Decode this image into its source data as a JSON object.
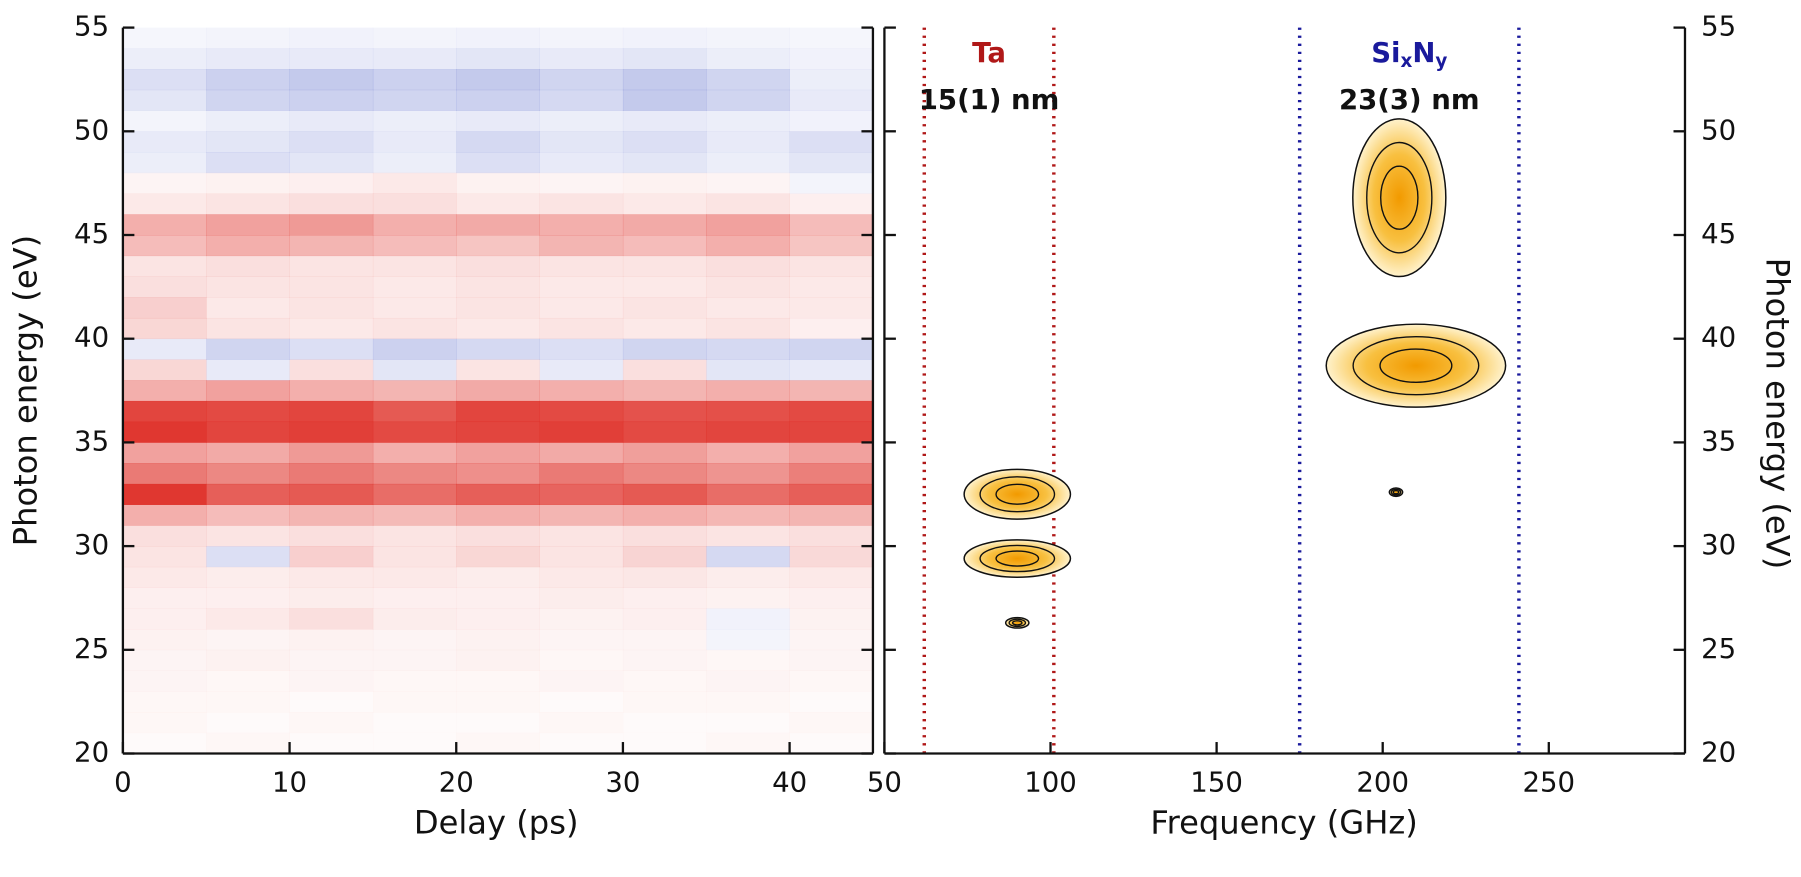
{
  "chart_data": [
    {
      "type": "heatmap",
      "xlabel": "Delay (ps)",
      "ylabel": "Photon energy (eV)",
      "xlim": [
        0,
        45
      ],
      "ylim": [
        20,
        55
      ],
      "xticks": [
        0,
        10,
        20,
        30,
        40
      ],
      "yticks": [
        20,
        25,
        30,
        35,
        40,
        45,
        50,
        55
      ],
      "x_bins": [
        0,
        5,
        10,
        15,
        20,
        25,
        30,
        35,
        40,
        45
      ],
      "y_bins": [
        20,
        21,
        22,
        23,
        24,
        25,
        26,
        27,
        28,
        29,
        30,
        31,
        32,
        33,
        34,
        35,
        36,
        37,
        38,
        39,
        40,
        41,
        42,
        43,
        44,
        45,
        46,
        47,
        48,
        49,
        50,
        51,
        52,
        53,
        54,
        55
      ],
      "zlim": [
        -0.8,
        0.8
      ],
      "colors": {
        "positive": "#de2a22",
        "negative": "#4456c4"
      },
      "values": [
        [
          0.02,
          0.03,
          0.02,
          0.02,
          0.03,
          0.02,
          0.02,
          0.03,
          0.02
        ],
        [
          0.03,
          0.02,
          0.03,
          0.02,
          0.02,
          0.03,
          0.02,
          0.02,
          0.03
        ],
        [
          0.03,
          0.03,
          0.02,
          0.03,
          0.03,
          0.02,
          0.03,
          0.03,
          0.02
        ],
        [
          0.04,
          0.03,
          0.04,
          0.03,
          0.03,
          0.04,
          0.03,
          0.04,
          0.03
        ],
        [
          0.04,
          0.05,
          0.04,
          0.04,
          0.05,
          0.03,
          0.04,
          0.03,
          0.04
        ],
        [
          0.05,
          0.04,
          0.05,
          0.04,
          0.05,
          0.04,
          0.04,
          -0.05,
          0.04
        ],
        [
          0.06,
          0.08,
          0.12,
          0.07,
          0.06,
          0.05,
          0.06,
          -0.06,
          0.05
        ],
        [
          0.06,
          0.06,
          0.07,
          0.06,
          0.06,
          0.07,
          0.06,
          0.05,
          0.06
        ],
        [
          0.08,
          0.07,
          0.08,
          0.08,
          0.07,
          0.08,
          0.09,
          0.07,
          0.08
        ],
        [
          0.1,
          -0.15,
          0.18,
          0.1,
          0.15,
          0.1,
          0.16,
          -0.18,
          0.14
        ],
        [
          0.12,
          0.1,
          0.12,
          0.1,
          0.12,
          0.1,
          0.12,
          0.1,
          0.12
        ],
        [
          0.3,
          0.25,
          0.28,
          0.26,
          0.3,
          0.28,
          0.3,
          0.27,
          0.28
        ],
        [
          0.75,
          0.6,
          0.62,
          0.55,
          0.6,
          0.58,
          0.62,
          0.55,
          0.6
        ],
        [
          0.5,
          0.45,
          0.5,
          0.45,
          0.42,
          0.5,
          0.45,
          0.4,
          0.48
        ],
        [
          0.35,
          0.32,
          0.38,
          0.3,
          0.35,
          0.32,
          0.36,
          0.3,
          0.35
        ],
        [
          0.75,
          0.7,
          0.72,
          0.68,
          0.7,
          0.72,
          0.68,
          0.7,
          0.7
        ],
        [
          0.7,
          0.68,
          0.7,
          0.62,
          0.7,
          0.68,
          0.65,
          0.66,
          0.68
        ],
        [
          0.3,
          0.35,
          0.3,
          0.28,
          0.32,
          0.3,
          0.28,
          0.3,
          0.28
        ],
        [
          0.15,
          -0.1,
          0.12,
          -0.12,
          0.1,
          -0.1,
          0.12,
          -0.12,
          -0.1
        ],
        [
          -0.1,
          -0.2,
          -0.15,
          -0.22,
          -0.18,
          -0.15,
          -0.2,
          -0.18,
          -0.2
        ],
        [
          0.15,
          0.1,
          0.08,
          0.1,
          0.08,
          0.1,
          0.08,
          0.1,
          0.06
        ],
        [
          0.18,
          0.08,
          0.1,
          0.08,
          0.1,
          0.08,
          0.1,
          0.08,
          0.08
        ],
        [
          0.12,
          0.1,
          0.1,
          0.08,
          0.1,
          0.08,
          0.08,
          0.1,
          0.08
        ],
        [
          0.1,
          0.12,
          0.1,
          0.1,
          0.12,
          0.1,
          0.1,
          0.12,
          0.1
        ],
        [
          0.25,
          0.3,
          0.28,
          0.25,
          0.22,
          0.28,
          0.25,
          0.3,
          0.22
        ],
        [
          0.3,
          0.35,
          0.38,
          0.3,
          0.32,
          0.3,
          0.32,
          0.35,
          0.25
        ],
        [
          0.08,
          0.1,
          0.12,
          0.12,
          0.08,
          0.1,
          0.08,
          0.1,
          0.06
        ],
        [
          0.04,
          0.05,
          0.06,
          0.08,
          0.05,
          0.04,
          0.05,
          0.04,
          -0.05
        ],
        [
          -0.08,
          -0.15,
          -0.12,
          -0.08,
          -0.15,
          -0.1,
          -0.12,
          -0.08,
          -0.12
        ],
        [
          -0.1,
          -0.12,
          -0.15,
          -0.1,
          -0.18,
          -0.12,
          -0.15,
          -0.1,
          -0.15
        ],
        [
          -0.05,
          -0.08,
          -0.1,
          -0.08,
          -0.1,
          -0.08,
          -0.1,
          -0.08,
          -0.06
        ],
        [
          -0.12,
          -0.2,
          -0.22,
          -0.2,
          -0.22,
          -0.18,
          -0.25,
          -0.2,
          -0.1
        ],
        [
          -0.15,
          -0.22,
          -0.25,
          -0.22,
          -0.25,
          -0.2,
          -0.25,
          -0.2,
          -0.08
        ],
        [
          -0.08,
          -0.1,
          -0.1,
          -0.1,
          -0.12,
          -0.1,
          -0.12,
          -0.08,
          -0.06
        ],
        [
          -0.04,
          -0.05,
          -0.06,
          -0.05,
          -0.06,
          -0.05,
          -0.06,
          -0.05,
          -0.04
        ]
      ]
    },
    {
      "type": "contour",
      "xlabel": "Frequency (GHz)",
      "ylabel": "Photon energy (eV)",
      "xlim": [
        50,
        291
      ],
      "ylim": [
        20,
        55
      ],
      "xticks": [
        50,
        100,
        150,
        200,
        250
      ],
      "yticks": [
        20,
        25,
        30,
        35,
        40,
        45,
        50,
        55
      ],
      "fill_color": "#f5a000",
      "peaks": [
        {
          "x": 90,
          "y": 32.5,
          "x_halfwidth": 16,
          "y_halfwidth": 1.2
        },
        {
          "x": 90,
          "y": 29.4,
          "x_halfwidth": 16,
          "y_halfwidth": 0.9
        },
        {
          "x": 90,
          "y": 26.3,
          "x_halfwidth": 3.5,
          "y_halfwidth": 0.25
        },
        {
          "x": 205,
          "y": 46.8,
          "x_halfwidth": 14,
          "y_halfwidth": 3.8
        },
        {
          "x": 210,
          "y": 38.7,
          "x_halfwidth": 27,
          "y_halfwidth": 2
        },
        {
          "x": 204,
          "y": 32.6,
          "x_halfwidth": 2,
          "y_halfwidth": 0.2
        }
      ],
      "layers": [
        {
          "name": [
            "Ta"
          ],
          "thickness": "15(1) nm",
          "color": "#b01818",
          "bounds": [
            62,
            101
          ]
        },
        {
          "name": [
            "Si",
            "x",
            "N",
            "y"
          ],
          "thickness": "23(3) nm",
          "color": "#1a1a9c",
          "bounds": [
            175,
            241
          ]
        }
      ]
    }
  ]
}
